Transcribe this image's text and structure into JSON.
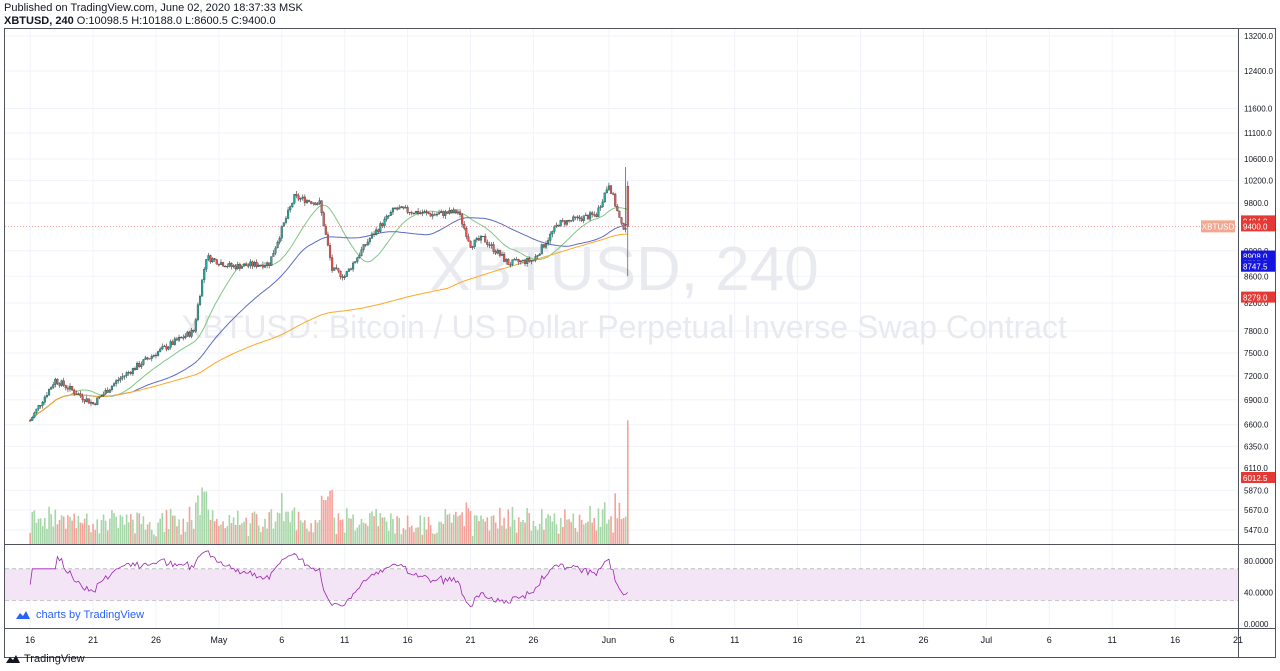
{
  "header": {
    "published": "Published on TradingView.com, June 02, 2020 18:37:33 MSK",
    "symbol": "XBTUSD, 240",
    "o_label": "O:",
    "o": "10098.5",
    "h_label": "H:",
    "h": "10188.0",
    "l_label": "L:",
    "l": "8600.5",
    "c_label": "C:",
    "c": "9400.0"
  },
  "watermark": {
    "symbol": "XBTUSD, 240",
    "description": "XBTUSD: Bitcoin / US Dollar Perpetual Inverse Swap Contract"
  },
  "branding": {
    "charts_by": "charts by TradingView",
    "footer": "TradingView"
  },
  "colors": {
    "up": "#26a69a",
    "down": "#ef5350",
    "ma_green": "#81c784",
    "ma_blue": "#5c6bc0",
    "ma_orange": "#ffa726",
    "rsi": "#9c27b0",
    "rsi_band": "#f3e5f5",
    "grid": "#f0f3fa",
    "price_line": "#ef5350",
    "label_blue": "#1515e0",
    "label_red": "#e53935"
  },
  "chart_data": {
    "type": "candlestick",
    "symbol": "XBTUSD",
    "interval": "240",
    "price_axis_scale": "log",
    "price_ticks": [
      5470,
      5670,
      5870,
      6110,
      6350,
      6600,
      6900,
      7200,
      7500,
      7800,
      8200,
      8600,
      9000,
      9800,
      10200,
      10600,
      11100,
      11600,
      12400,
      13200
    ],
    "price_ticks_label": [
      "5470.0",
      "5670.0",
      "5870.0",
      "6110.0",
      "6350.0",
      "6600.0",
      "6900.0",
      "7200.0",
      "7500.0",
      "7800.0",
      "8200.0",
      "8600.0",
      "9000.0",
      "9800.0",
      "10200.0",
      "10600.0",
      "11100.0",
      "11600.0",
      "12400.0",
      "13200.0"
    ],
    "price_labels": [
      {
        "text": "9484.0",
        "value": 9484,
        "color": "#e53935"
      },
      {
        "text": "9400.0",
        "value": 9400,
        "color": "#e53935"
      },
      {
        "text": "8908.0",
        "value": 8908,
        "color": "#1515e0"
      },
      {
        "text": "8795.5",
        "value": 8795.5,
        "color": "#1515e0"
      },
      {
        "text": "8747.5",
        "value": 8747.5,
        "color": "#1515e0"
      },
      {
        "text": "8279.0",
        "value": 8279,
        "color": "#e53935"
      },
      {
        "text": "6012.5",
        "value": 6012.5,
        "color": "#e53935"
      }
    ],
    "symbol_tag": "XBTUSD",
    "date_ticks": [
      "16",
      "21",
      "26",
      "May",
      "6",
      "11",
      "16",
      "21",
      "26",
      "Jun",
      "6",
      "11",
      "16",
      "21",
      "26",
      "Jul",
      "6",
      "11",
      "16",
      "21"
    ],
    "rsi_ticks": [
      80,
      40,
      0
    ],
    "rsi_ticks_label": [
      "80.0000",
      "40.0000",
      "0.0000"
    ],
    "rsi_bands": [
      70,
      30
    ],
    "key_prices": [
      {
        "x": "Apr 16",
        "price": 6650
      },
      {
        "x": "Apr 18",
        "price": 7150
      },
      {
        "x": "Apr 21",
        "price": 6850
      },
      {
        "x": "Apr 23",
        "price": 7150
      },
      {
        "x": "Apr 26",
        "price": 7500
      },
      {
        "x": "Apr 29",
        "price": 7800
      },
      {
        "x": "Apr 30",
        "price": 8900
      },
      {
        "x": "May 2",
        "price": 8750
      },
      {
        "x": "May 5",
        "price": 8800
      },
      {
        "x": "May 7",
        "price": 9900
      },
      {
        "x": "May 9",
        "price": 9800
      },
      {
        "x": "May 10",
        "price": 8700
      },
      {
        "x": "May 11",
        "price": 8600
      },
      {
        "x": "May 13",
        "price": 9200
      },
      {
        "x": "May 15",
        "price": 9700
      },
      {
        "x": "May 18",
        "price": 9600
      },
      {
        "x": "May 20",
        "price": 9650
      },
      {
        "x": "May 21",
        "price": 9100
      },
      {
        "x": "May 22",
        "price": 9200
      },
      {
        "x": "May 24",
        "price": 8800
      },
      {
        "x": "May 26",
        "price": 8850
      },
      {
        "x": "May 28",
        "price": 9450
      },
      {
        "x": "May 31",
        "price": 9600
      },
      {
        "x": "Jun 1",
        "price": 10150
      },
      {
        "x": "Jun 2",
        "price": 9400
      }
    ]
  }
}
